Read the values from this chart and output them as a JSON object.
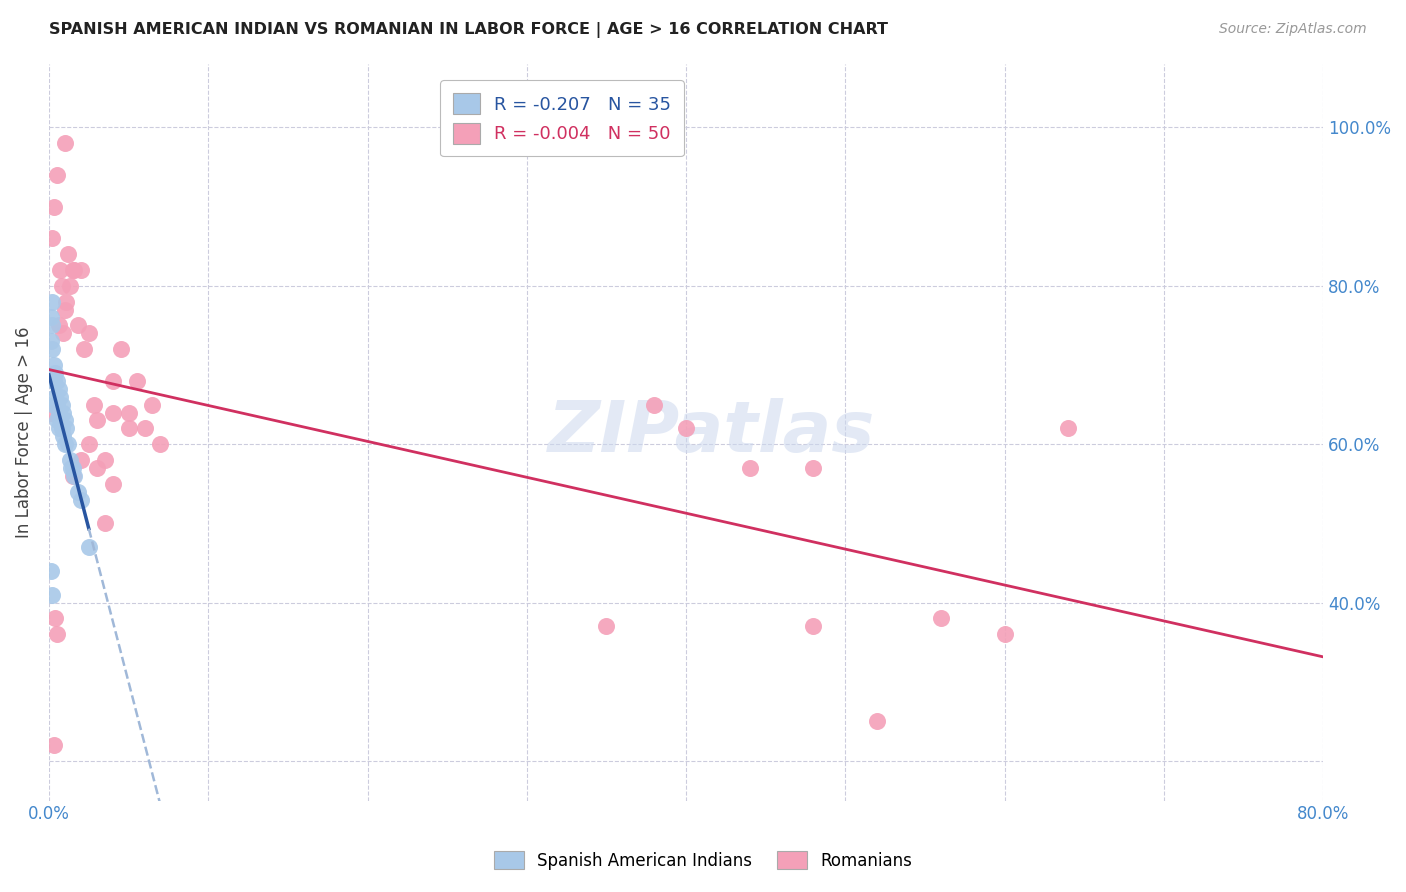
{
  "title": "SPANISH AMERICAN INDIAN VS ROMANIAN IN LABOR FORCE | AGE > 16 CORRELATION CHART",
  "source": "Source: ZipAtlas.com",
  "ylabel": "In Labor Force | Age > 16",
  "xlim": [
    0.0,
    0.8
  ],
  "ylim": [
    0.15,
    1.08
  ],
  "xticks": [
    0.0,
    0.1,
    0.2,
    0.3,
    0.4,
    0.5,
    0.6,
    0.7,
    0.8
  ],
  "yticks": [
    0.2,
    0.4,
    0.6,
    0.8,
    1.0
  ],
  "ytick_labels_right": [
    "",
    "40.0%",
    "60.0%",
    "80.0%",
    "100.0%"
  ],
  "xtick_labels": [
    "0.0%",
    "",
    "",
    "",
    "",
    "",
    "",
    "",
    "80.0%"
  ],
  "blue_R": -0.207,
  "blue_N": 35,
  "pink_R": -0.004,
  "pink_N": 50,
  "blue_color": "#a8c8e8",
  "pink_color": "#f4a0b8",
  "blue_line_color": "#2855a0",
  "pink_line_color": "#d03060",
  "blue_line_dash_color": "#a0b8d8",
  "grid_color": "#ccccdd",
  "background_color": "#ffffff",
  "watermark": "ZIPatlas",
  "blue_scatter_x": [
    0.001,
    0.001,
    0.002,
    0.002,
    0.002,
    0.003,
    0.003,
    0.003,
    0.004,
    0.004,
    0.005,
    0.005,
    0.005,
    0.006,
    0.006,
    0.006,
    0.007,
    0.007,
    0.008,
    0.008,
    0.009,
    0.009,
    0.01,
    0.01,
    0.011,
    0.012,
    0.013,
    0.014,
    0.015,
    0.016,
    0.018,
    0.02,
    0.025,
    0.001,
    0.002
  ],
  "blue_scatter_y": [
    0.76,
    0.73,
    0.78,
    0.75,
    0.72,
    0.7,
    0.68,
    0.65,
    0.69,
    0.66,
    0.68,
    0.65,
    0.63,
    0.67,
    0.64,
    0.62,
    0.66,
    0.63,
    0.65,
    0.62,
    0.64,
    0.61,
    0.63,
    0.6,
    0.62,
    0.6,
    0.58,
    0.57,
    0.57,
    0.56,
    0.54,
    0.53,
    0.47,
    0.44,
    0.41
  ],
  "pink_scatter_x": [
    0.001,
    0.002,
    0.003,
    0.004,
    0.005,
    0.006,
    0.007,
    0.008,
    0.009,
    0.01,
    0.011,
    0.012,
    0.013,
    0.015,
    0.016,
    0.018,
    0.02,
    0.022,
    0.025,
    0.028,
    0.03,
    0.035,
    0.04,
    0.05,
    0.055,
    0.06,
    0.065,
    0.07,
    0.03,
    0.025,
    0.04,
    0.045,
    0.02,
    0.015,
    0.01,
    0.005,
    0.003,
    0.05,
    0.04,
    0.035,
    0.38,
    0.4,
    0.44,
    0.48,
    0.52,
    0.56,
    0.6,
    0.64,
    0.48,
    0.35
  ],
  "pink_scatter_y": [
    0.64,
    0.86,
    0.9,
    0.38,
    0.94,
    0.75,
    0.82,
    0.8,
    0.74,
    0.77,
    0.78,
    0.84,
    0.8,
    0.82,
    0.82,
    0.75,
    0.82,
    0.72,
    0.74,
    0.65,
    0.63,
    0.58,
    0.64,
    0.64,
    0.68,
    0.62,
    0.65,
    0.6,
    0.57,
    0.6,
    0.68,
    0.72,
    0.58,
    0.56,
    0.98,
    0.36,
    0.22,
    0.62,
    0.55,
    0.5,
    0.65,
    0.62,
    0.57,
    0.37,
    0.25,
    0.38,
    0.36,
    0.62,
    0.57,
    0.37
  ]
}
